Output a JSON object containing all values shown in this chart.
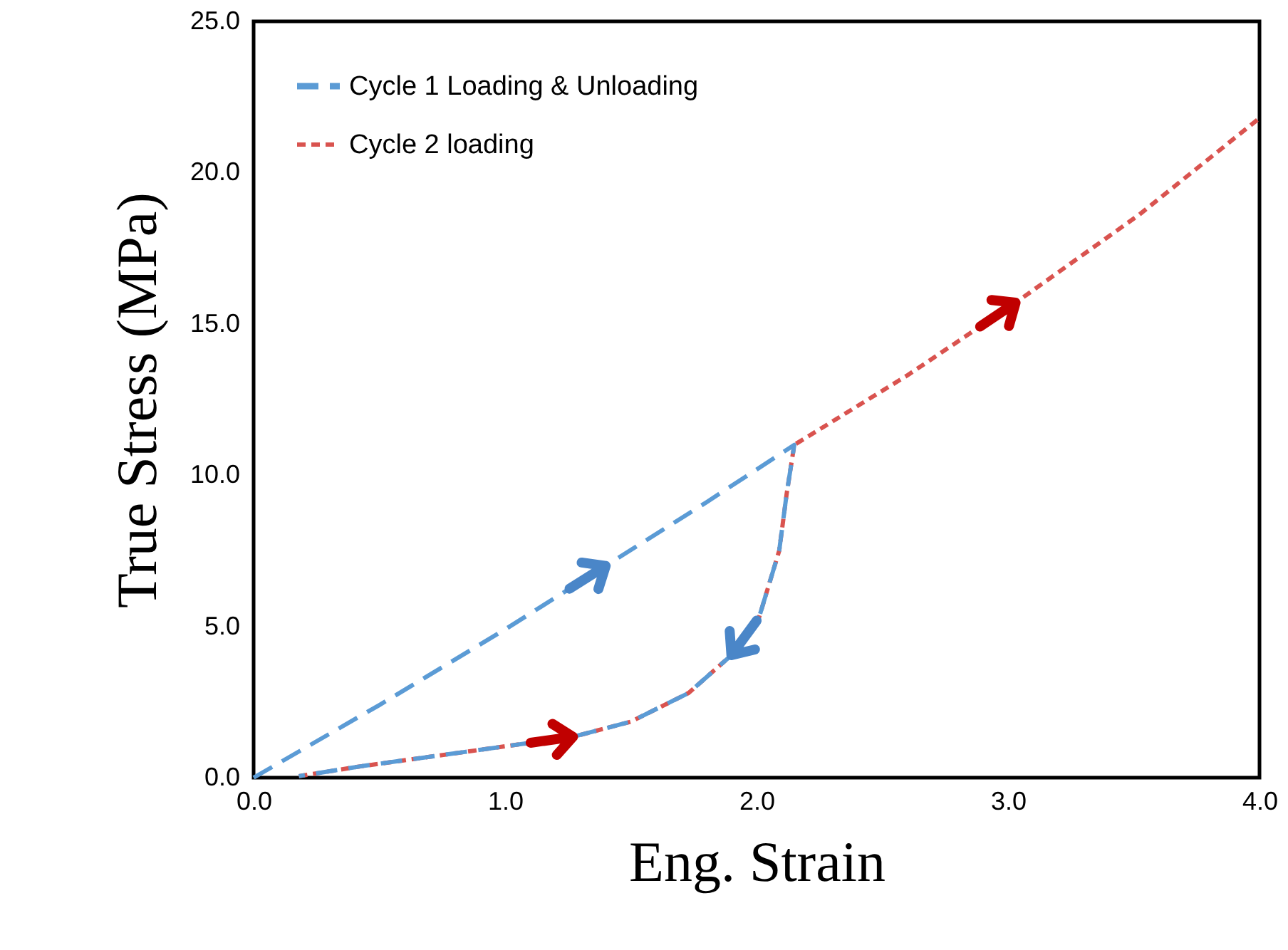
{
  "chart_data": {
    "type": "line",
    "xlabel": "Eng. Strain",
    "ylabel": "True Stress (MPa)",
    "xlim": [
      0,
      4
    ],
    "ylim": [
      0,
      25
    ],
    "xticks": [
      {
        "value": 0,
        "label": "0.0"
      },
      {
        "value": 1,
        "label": "1.0"
      },
      {
        "value": 2,
        "label": "2.0"
      },
      {
        "value": 3,
        "label": "3.0"
      },
      {
        "value": 4,
        "label": "4.0"
      }
    ],
    "yticks": [
      {
        "value": 0,
        "label": "0.0"
      },
      {
        "value": 5,
        "label": "5.0"
      },
      {
        "value": 10,
        "label": "10.0"
      },
      {
        "value": 15,
        "label": "15.0"
      },
      {
        "value": 20,
        "label": "20.0"
      },
      {
        "value": 25,
        "label": "25.0"
      }
    ],
    "grid": false,
    "legend": "top left",
    "series": [
      {
        "name": "Cycle 1 Loading & Unloading",
        "color": "#5b9bd5",
        "line_style": "dashed",
        "x": [
          0,
          0.5,
          1.0,
          1.4,
          1.8,
          2.15,
          2.12,
          2.09,
          2.01,
          1.9,
          1.73,
          1.5,
          1.27,
          0.84,
          0.43,
          0.18
        ],
        "values": [
          0,
          2.4,
          4.9,
          7.0,
          9.1,
          11.0,
          9.4,
          7.5,
          5.3,
          4.05,
          2.8,
          1.85,
          1.35,
          0.85,
          0.38,
          0.05
        ]
      },
      {
        "name": "Cycle 2 loading",
        "color": "#d9534f",
        "line_style": "dotted",
        "x": [
          0.18,
          0.43,
          0.84,
          1.27,
          1.5,
          1.73,
          1.9,
          2.01,
          2.09,
          2.12,
          2.15,
          2.6,
          3.03,
          3.52,
          4.0
        ],
        "values": [
          0.05,
          0.38,
          0.85,
          1.35,
          1.85,
          2.8,
          4.05,
          5.3,
          7.5,
          9.4,
          11.0,
          13.3,
          15.7,
          18.6,
          21.8
        ]
      }
    ]
  }
}
